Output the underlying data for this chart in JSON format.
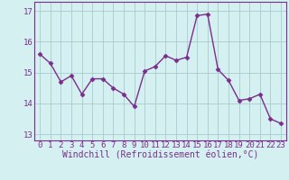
{
  "x": [
    0,
    1,
    2,
    3,
    4,
    5,
    6,
    7,
    8,
    9,
    10,
    11,
    12,
    13,
    14,
    15,
    16,
    17,
    18,
    19,
    20,
    21,
    22,
    23
  ],
  "y": [
    15.6,
    15.3,
    14.7,
    14.9,
    14.3,
    14.8,
    14.8,
    14.5,
    14.3,
    13.9,
    15.05,
    15.2,
    15.55,
    15.4,
    15.5,
    16.85,
    16.9,
    15.1,
    14.75,
    14.1,
    14.15,
    14.3,
    13.5,
    13.35
  ],
  "line_color": "#7b2d8b",
  "marker": "D",
  "marker_size": 2.5,
  "background_color": "#d4f0f0",
  "grid_color": "#aacccc",
  "xlabel": "Windchill (Refroidissement éolien,°C)",
  "xlabel_color": "#7b2d8b",
  "ylim": [
    12.8,
    17.3
  ],
  "xlim": [
    -0.5,
    23.5
  ],
  "yticks": [
    13,
    14,
    15,
    16,
    17
  ],
  "xticks": [
    0,
    1,
    2,
    3,
    4,
    5,
    6,
    7,
    8,
    9,
    10,
    11,
    12,
    13,
    14,
    15,
    16,
    17,
    18,
    19,
    20,
    21,
    22,
    23
  ],
  "tick_color": "#7b2d8b",
  "axis_color": "#7b2d8b",
  "font_size_xlabel": 7.0,
  "font_size_ticks": 6.5,
  "line_width": 1.0
}
